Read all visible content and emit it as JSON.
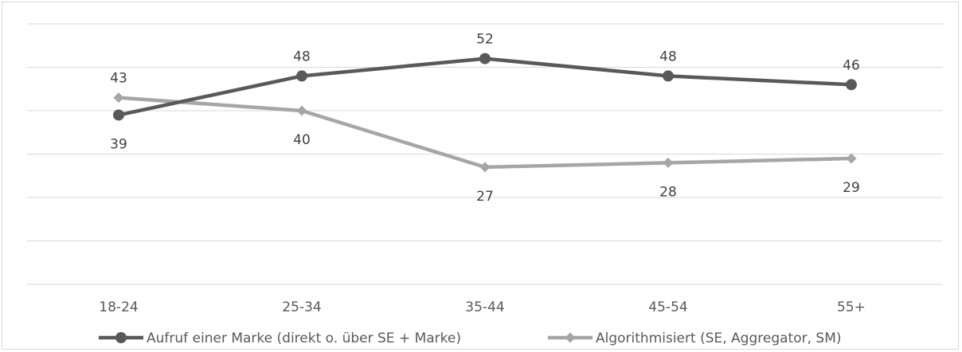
{
  "chart_data": {
    "type": "line",
    "categories": [
      "18-24",
      "25-34",
      "35-44",
      "45-54",
      "55+"
    ],
    "series": [
      {
        "name": "Aufruf einer Marke (direkt o. über SE + Marke)",
        "values": [
          39,
          48,
          52,
          48,
          46
        ],
        "color": "#595959",
        "marker": "circle"
      },
      {
        "name": "Algorithmisiert (SE, Aggregator, SM)",
        "values": [
          43,
          40,
          27,
          28,
          29
        ],
        "color": "#a6a6a6",
        "marker": "diamond"
      }
    ],
    "ylim": [
      0,
      60
    ],
    "grid": true,
    "legend": "bottom"
  }
}
